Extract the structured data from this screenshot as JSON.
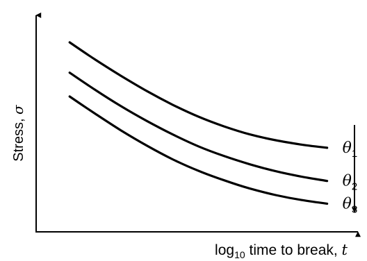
{
  "chart_data": {
    "type": "line",
    "xlabel": {
      "prefix": "log",
      "subscript": "10",
      "text": " time to break, ",
      "symbol": "t"
    },
    "ylabel": {
      "text": "Stress, ",
      "symbol": "σ"
    },
    "x": [
      0,
      1,
      2,
      3,
      4,
      5,
      6,
      7,
      8,
      9,
      10
    ],
    "xlim": [
      -1.3,
      11.2
    ],
    "ylim": [
      0,
      10
    ],
    "grid": false,
    "ticks": false,
    "series": [
      {
        "name": "θ",
        "subscript": "1",
        "values": [
          8.75,
          7.95,
          7.2,
          6.5,
          5.87,
          5.32,
          4.87,
          4.5,
          4.23,
          4.03,
          3.88
        ]
      },
      {
        "name": "θ",
        "subscript": "2",
        "values": [
          7.35,
          6.55,
          5.8,
          5.12,
          4.5,
          3.95,
          3.5,
          3.12,
          2.8,
          2.55,
          2.35
        ]
      },
      {
        "name": "θ",
        "subscript": "3",
        "values": [
          6.25,
          5.45,
          4.68,
          3.98,
          3.35,
          2.82,
          2.38,
          2.0,
          1.7,
          1.47,
          1.3
        ]
      }
    ],
    "annotation": {
      "arrow_direction": "down"
    }
  }
}
